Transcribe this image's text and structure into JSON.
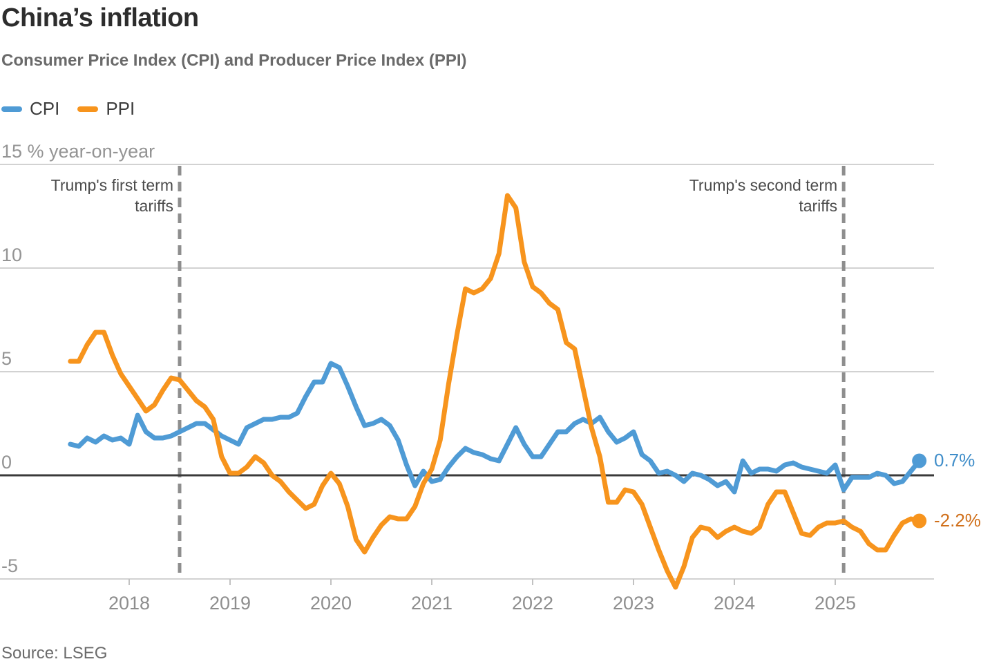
{
  "header": {
    "title": "China’s inflation",
    "subtitle": "Consumer Price Index (CPI) and Producer Price Index (PPI)"
  },
  "legend": [
    {
      "label": "CPI",
      "color": "#4f9bd5"
    },
    {
      "label": "PPI",
      "color": "#f7941d"
    }
  ],
  "source": "Source: LSEG",
  "colors": {
    "cpi_line": "#4f9bd5",
    "ppi_line": "#f7941d",
    "cpi_label_text": "#3f8dc9",
    "ppi_label_text": "#d06f1a",
    "gridline": "#d2d2d2",
    "zero_line": "#3a3a3a",
    "event_dash": "#8e8e8e",
    "tick": "#c2c2c2"
  },
  "chart_data": {
    "type": "line",
    "title": "China’s inflation",
    "subtitle": "Consumer Price Index (CPI) and Producer Price Index (PPI)",
    "frequency": "monthly",
    "x_start": "2017-06",
    "x_end": "2025-11",
    "x_ticks": [
      2018,
      2019,
      2020,
      2021,
      2022,
      2023,
      2024,
      2025
    ],
    "ylim": [
      -6.5,
      15
    ],
    "grid": true,
    "y_axis": {
      "ticks": [
        {
          "value": 15,
          "label": "15 % year-on-year"
        },
        {
          "value": 10,
          "label": "10"
        },
        {
          "value": 5,
          "label": "5"
        },
        {
          "value": 0,
          "label": "0"
        },
        {
          "value": -5,
          "label": "-5"
        }
      ]
    },
    "events": [
      {
        "date": "2018-07",
        "lines": [
          "Trump's first term",
          "tariffs"
        ]
      },
      {
        "date": "2025-02",
        "lines": [
          "Trump's second term",
          "tariffs"
        ]
      }
    ],
    "series": [
      {
        "name": "CPI",
        "color": "#4f9bd5",
        "end_label": "0.7%",
        "end_label_color": "#3f8dc9",
        "values": [
          1.5,
          1.4,
          1.8,
          1.6,
          1.9,
          1.7,
          1.8,
          1.5,
          2.9,
          2.1,
          1.8,
          1.8,
          1.9,
          2.1,
          2.3,
          2.5,
          2.5,
          2.2,
          1.9,
          1.7,
          1.5,
          2.3,
          2.5,
          2.7,
          2.7,
          2.8,
          2.8,
          3.0,
          3.8,
          4.5,
          4.5,
          5.4,
          5.2,
          4.3,
          3.3,
          2.4,
          2.5,
          2.7,
          2.4,
          1.7,
          0.5,
          -0.5,
          0.2,
          -0.3,
          -0.2,
          0.4,
          0.9,
          1.3,
          1.1,
          1.0,
          0.8,
          0.7,
          1.5,
          2.3,
          1.5,
          0.9,
          0.9,
          1.5,
          2.1,
          2.1,
          2.5,
          2.7,
          2.5,
          2.8,
          2.1,
          1.6,
          1.8,
          2.1,
          1.0,
          0.7,
          0.1,
          0.2,
          0.0,
          -0.3,
          0.1,
          0.0,
          -0.2,
          -0.5,
          -0.3,
          -0.8,
          0.7,
          0.1,
          0.3,
          0.3,
          0.2,
          0.5,
          0.6,
          0.4,
          0.3,
          0.2,
          0.1,
          0.5,
          -0.7,
          -0.1,
          -0.1,
          -0.1,
          0.1,
          0.0,
          -0.4,
          -0.3,
          0.2,
          0.7
        ]
      },
      {
        "name": "PPI",
        "color": "#f7941d",
        "end_label": "-2.2%",
        "end_label_color": "#d06f1a",
        "values": [
          5.5,
          5.5,
          6.3,
          6.9,
          6.9,
          5.8,
          4.9,
          4.3,
          3.7,
          3.1,
          3.4,
          4.1,
          4.7,
          4.6,
          4.1,
          3.6,
          3.3,
          2.7,
          0.9,
          0.1,
          0.1,
          0.4,
          0.9,
          0.6,
          0.0,
          -0.3,
          -0.8,
          -1.2,
          -1.6,
          -1.4,
          -0.5,
          0.1,
          -0.4,
          -1.5,
          -3.1,
          -3.7,
          -3.0,
          -2.4,
          -2.0,
          -2.1,
          -2.1,
          -1.5,
          -0.4,
          0.3,
          1.7,
          4.4,
          6.8,
          9.0,
          8.8,
          9.0,
          9.5,
          10.7,
          13.5,
          12.9,
          10.3,
          9.1,
          8.8,
          8.3,
          8.0,
          6.4,
          6.1,
          4.2,
          2.3,
          0.9,
          -1.3,
          -1.3,
          -0.7,
          -0.8,
          -1.4,
          -2.5,
          -3.6,
          -4.6,
          -5.4,
          -4.4,
          -3.0,
          -2.5,
          -2.6,
          -3.0,
          -2.7,
          -2.5,
          -2.7,
          -2.8,
          -2.5,
          -1.4,
          -0.8,
          -0.8,
          -1.8,
          -2.8,
          -2.9,
          -2.5,
          -2.3,
          -2.3,
          -2.2,
          -2.5,
          -2.7,
          -3.3,
          -3.6,
          -3.6,
          -2.9,
          -2.3,
          -2.1,
          -2.2
        ]
      }
    ],
    "source": "Source: LSEG"
  }
}
